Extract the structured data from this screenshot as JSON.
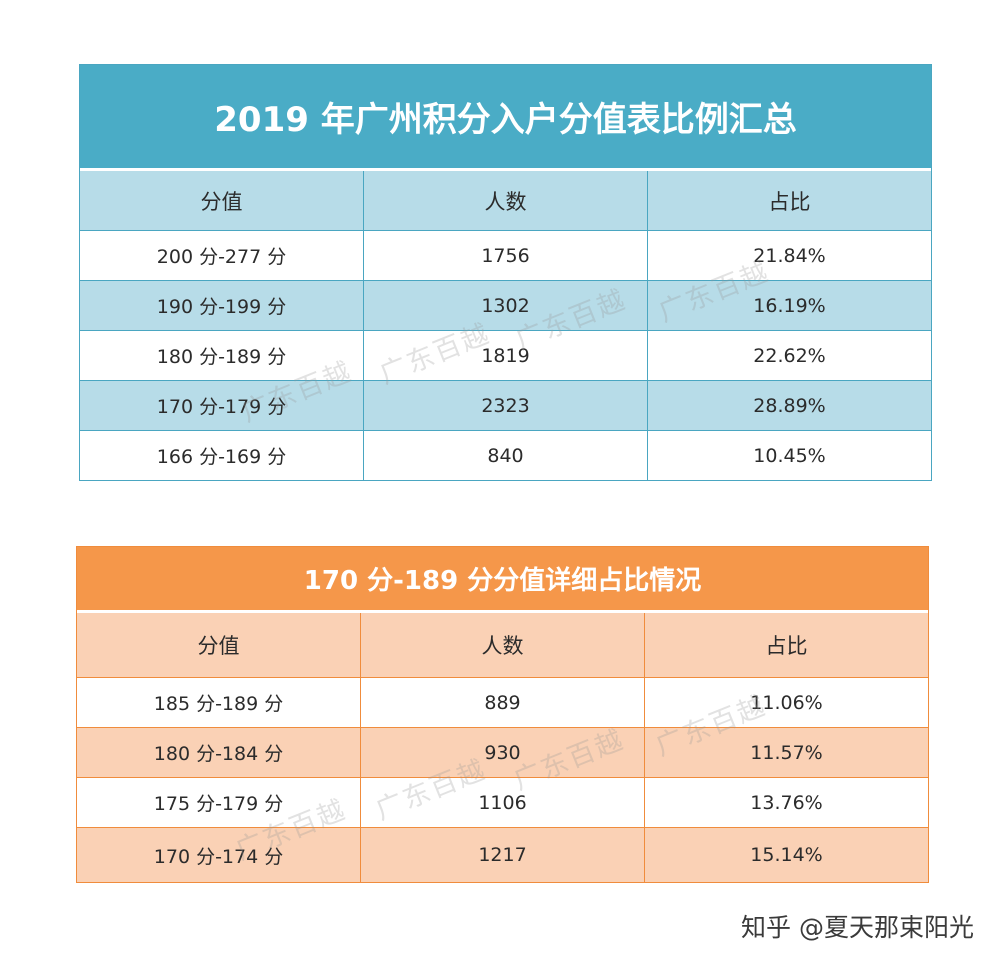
{
  "table1": {
    "title": "2019 年广州积分入户分值表比例汇总",
    "headers": [
      "分值",
      "人数",
      "占比"
    ],
    "rows": [
      [
        "200 分-277 分",
        "1756",
        "21.84%"
      ],
      [
        "190 分-199 分",
        "1302",
        "16.19%"
      ],
      [
        "180 分-189 分",
        "1819",
        "22.62%"
      ],
      [
        "170 分-179 分",
        "2323",
        "28.89%"
      ],
      [
        "166 分-169 分",
        "840",
        "10.45%"
      ]
    ]
  },
  "table2": {
    "title": "170 分-189 分分值详细占比情况",
    "headers": [
      "分值",
      "人数",
      "占比"
    ],
    "rows": [
      [
        "185 分-189 分",
        "889",
        "11.06%"
      ],
      [
        "180 分-184 分",
        "930",
        "11.57%"
      ],
      [
        "175 分-179 分",
        "1106",
        "13.76%"
      ],
      [
        "170 分-174 分",
        "1217",
        "15.14%"
      ]
    ]
  },
  "watermark": "广东百越",
  "credit": "知乎 @夏天那束阳光",
  "colors": {
    "table1_title_bg": "#4aacc6",
    "table1_band": "#b7dce8",
    "table2_title_bg": "#f5974a",
    "table2_band": "#fad1b5"
  }
}
